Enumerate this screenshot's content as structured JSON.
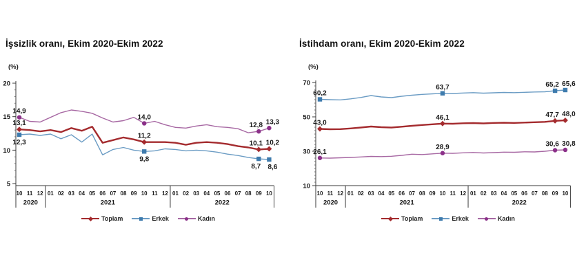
{
  "page": {
    "background": "#ffffff"
  },
  "chart_data": [
    {
      "type": "line",
      "title": "İşsizlik oranı, Ekim 2020-Ekim 2022",
      "unit_label": "(%)",
      "ylabel": "(%)",
      "ylim": [
        4.7,
        20.6
      ],
      "yticks": [
        5,
        10,
        15,
        20
      ],
      "grid": false,
      "legend_position": "bottom",
      "months": [
        "10",
        "11",
        "12",
        "01",
        "02",
        "03",
        "04",
        "05",
        "06",
        "07",
        "08",
        "09",
        "10",
        "11",
        "12",
        "01",
        "02",
        "03",
        "04",
        "05",
        "06",
        "07",
        "08",
        "09",
        "10"
      ],
      "year_groups": [
        {
          "label": "2020",
          "start": 0,
          "end": 2
        },
        {
          "label": "2021",
          "start": 3,
          "end": 14
        },
        {
          "label": "2022",
          "start": 15,
          "end": 24
        }
      ],
      "series": [
        {
          "name": "Kadın",
          "color": "#A768A3",
          "marker_color": "#8B3089",
          "marker": "circle",
          "values": [
            14.9,
            14.3,
            14.2,
            14.9,
            15.6,
            16.0,
            15.8,
            15.5,
            14.8,
            14.2,
            14.4,
            14.9,
            14.0,
            14.3,
            13.8,
            13.4,
            13.3,
            13.6,
            13.8,
            13.5,
            13.4,
            13.2,
            12.6,
            12.8,
            13.3
          ],
          "labels": [
            {
              "index": 0,
              "text": "14,9",
              "pos": "above"
            },
            {
              "index": 12,
              "text": "14,0",
              "pos": "above"
            },
            {
              "index": 23,
              "text": "12,8",
              "pos": "above"
            },
            {
              "index": 24,
              "text": "13,3",
              "pos": "above"
            }
          ]
        },
        {
          "name": "Erkek",
          "color": "#6B9CC4",
          "marker_color": "#3E7BAD",
          "marker": "square",
          "values": [
            12.3,
            12.4,
            12.2,
            12.4,
            11.7,
            12.3,
            11.2,
            12.4,
            9.3,
            10.1,
            10.4,
            10.0,
            9.8,
            9.9,
            10.2,
            10.1,
            9.9,
            10.0,
            9.9,
            9.7,
            9.4,
            9.2,
            8.9,
            8.7,
            8.6
          ],
          "labels": [
            {
              "index": 0,
              "text": "12,3",
              "pos": "below"
            },
            {
              "index": 12,
              "text": "9,8",
              "pos": "below"
            },
            {
              "index": 23,
              "text": "8,7",
              "pos": "below"
            },
            {
              "index": 24,
              "text": "8,6",
              "pos": "below"
            }
          ]
        },
        {
          "name": "Toplam",
          "color": "#A42B2E",
          "marker_color": "#A42B2E",
          "marker": "diamond",
          "values": [
            13.1,
            13.0,
            12.8,
            13.0,
            12.7,
            13.3,
            12.9,
            13.5,
            11.1,
            11.5,
            11.9,
            11.6,
            11.2,
            11.2,
            11.2,
            11.1,
            10.8,
            11.1,
            11.2,
            11.1,
            10.9,
            10.6,
            10.4,
            10.1,
            10.2
          ],
          "labels": [
            {
              "index": 0,
              "text": "13,1",
              "pos": "above"
            },
            {
              "index": 12,
              "text": "11,2",
              "pos": "above"
            },
            {
              "index": 23,
              "text": "10,1",
              "pos": "above"
            },
            {
              "index": 24,
              "text": "10,2",
              "pos": "above"
            }
          ]
        }
      ],
      "legend_order": [
        "Toplam",
        "Erkek",
        "Kadın"
      ]
    },
    {
      "type": "line",
      "title": "İstihdam oranı, Ekim 2020-Ekim 2022",
      "unit_label": "(%)",
      "ylabel": "(%)",
      "ylim": [
        10,
        72
      ],
      "yticks": [
        10,
        30,
        50,
        70
      ],
      "grid": false,
      "legend_position": "bottom",
      "months": [
        "10",
        "11",
        "12",
        "01",
        "02",
        "03",
        "04",
        "05",
        "06",
        "07",
        "08",
        "09",
        "10",
        "11",
        "12",
        "01",
        "02",
        "03",
        "04",
        "05",
        "06",
        "07",
        "08",
        "09",
        "10"
      ],
      "year_groups": [
        {
          "label": "2020",
          "start": 0,
          "end": 2
        },
        {
          "label": "2021",
          "start": 3,
          "end": 14
        },
        {
          "label": "2022",
          "start": 15,
          "end": 24
        }
      ],
      "series": [
        {
          "name": "Kadın",
          "color": "#A768A3",
          "marker_color": "#8B3089",
          "marker": "circle",
          "values": [
            26.1,
            26.0,
            26.2,
            26.4,
            26.7,
            27.0,
            26.9,
            27.1,
            27.6,
            28.3,
            28.1,
            28.5,
            28.9,
            28.8,
            29.1,
            29.3,
            29.0,
            29.2,
            29.5,
            29.4,
            29.7,
            29.6,
            30.0,
            30.6,
            30.8
          ],
          "labels": [
            {
              "index": 0,
              "text": "26,1",
              "pos": "above"
            },
            {
              "index": 12,
              "text": "28,9",
              "pos": "above"
            },
            {
              "index": 23,
              "text": "30,6",
              "pos": "above"
            },
            {
              "index": 24,
              "text": "30,8",
              "pos": "above"
            }
          ]
        },
        {
          "name": "Erkek",
          "color": "#6B9CC4",
          "marker_color": "#3E7BAD",
          "marker": "square",
          "values": [
            60.2,
            60.0,
            59.9,
            60.5,
            61.3,
            62.4,
            61.6,
            61.2,
            62.0,
            62.6,
            63.1,
            63.4,
            63.7,
            63.6,
            63.9,
            64.1,
            63.8,
            64.0,
            64.2,
            64.1,
            64.3,
            64.5,
            64.6,
            65.2,
            65.6
          ],
          "labels": [
            {
              "index": 0,
              "text": "60,2",
              "pos": "above"
            },
            {
              "index": 12,
              "text": "63,7",
              "pos": "above"
            },
            {
              "index": 23,
              "text": "65,2",
              "pos": "above"
            },
            {
              "index": 24,
              "text": "65,6",
              "pos": "above"
            }
          ]
        },
        {
          "name": "Toplam",
          "color": "#A42B2E",
          "marker_color": "#A42B2E",
          "marker": "diamond",
          "values": [
            43.0,
            42.8,
            42.9,
            43.3,
            43.8,
            44.4,
            44.0,
            43.8,
            44.3,
            44.8,
            45.3,
            45.7,
            46.1,
            46.0,
            46.3,
            46.4,
            46.2,
            46.5,
            46.6,
            46.5,
            46.7,
            46.9,
            47.1,
            47.7,
            48.0
          ],
          "labels": [
            {
              "index": 0,
              "text": "43,0",
              "pos": "above"
            },
            {
              "index": 12,
              "text": "46,1",
              "pos": "above"
            },
            {
              "index": 23,
              "text": "47,7",
              "pos": "above"
            },
            {
              "index": 24,
              "text": "48,0",
              "pos": "above"
            }
          ]
        }
      ],
      "legend_order": [
        "Toplam",
        "Erkek",
        "Kadın"
      ]
    }
  ]
}
